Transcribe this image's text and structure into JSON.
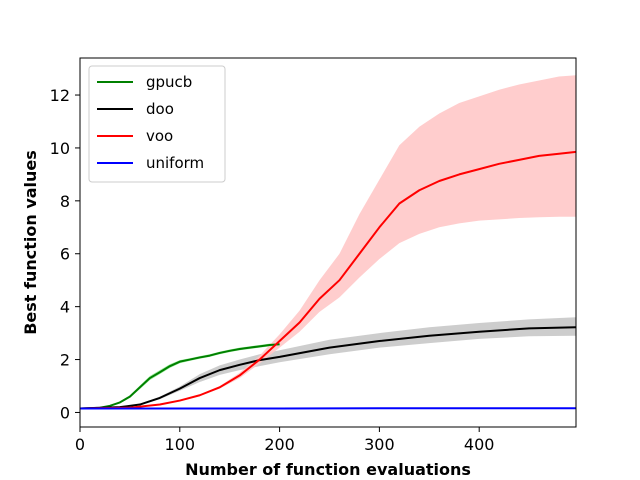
{
  "chart_data": {
    "type": "line",
    "title": "",
    "xlabel": "Number of function evaluations",
    "ylabel": "Best function values",
    "xlim": [
      0,
      497
    ],
    "ylim": [
      -0.55,
      13.4
    ],
    "xticks": [
      0,
      100,
      200,
      300,
      400
    ],
    "yticks": [
      0,
      2,
      4,
      6,
      8,
      10,
      12
    ],
    "grid": false,
    "legend_position": "top-left",
    "series": [
      {
        "name": "gpucb",
        "color": "#008000",
        "band_color": "#90ee90",
        "x": [
          0,
          20,
          30,
          40,
          50,
          60,
          70,
          80,
          90,
          100,
          110,
          120,
          130,
          140,
          150,
          160,
          170,
          180,
          190,
          200
        ],
        "y": [
          0.15,
          0.18,
          0.25,
          0.38,
          0.6,
          0.95,
          1.3,
          1.52,
          1.75,
          1.92,
          2.0,
          2.08,
          2.15,
          2.25,
          2.33,
          2.4,
          2.45,
          2.5,
          2.55,
          2.58
        ],
        "lower": [
          0.14,
          0.17,
          0.23,
          0.35,
          0.55,
          0.88,
          1.22,
          1.45,
          1.68,
          1.86,
          1.95,
          2.03,
          2.1,
          2.2,
          2.28,
          2.35,
          2.4,
          2.45,
          2.5,
          2.53
        ],
        "upper": [
          0.16,
          0.19,
          0.27,
          0.41,
          0.65,
          1.02,
          1.38,
          1.6,
          1.82,
          1.98,
          2.05,
          2.13,
          2.2,
          2.3,
          2.38,
          2.45,
          2.5,
          2.55,
          2.6,
          2.63
        ]
      },
      {
        "name": "doo",
        "color": "#000000",
        "band_color": "#c8c8c8",
        "x": [
          0,
          40,
          60,
          80,
          100,
          120,
          140,
          160,
          180,
          200,
          250,
          300,
          350,
          400,
          450,
          497
        ],
        "y": [
          0.15,
          0.2,
          0.3,
          0.55,
          0.9,
          1.3,
          1.6,
          1.8,
          1.98,
          2.1,
          2.45,
          2.7,
          2.9,
          3.05,
          3.18,
          3.22
        ],
        "lower": [
          0.15,
          0.19,
          0.28,
          0.5,
          0.82,
          1.15,
          1.42,
          1.6,
          1.75,
          1.9,
          2.2,
          2.45,
          2.62,
          2.78,
          2.88,
          2.9
        ],
        "upper": [
          0.15,
          0.21,
          0.32,
          0.6,
          0.98,
          1.45,
          1.78,
          2.0,
          2.2,
          2.35,
          2.75,
          3.0,
          3.22,
          3.38,
          3.52,
          3.6
        ]
      },
      {
        "name": "voo",
        "color": "#ff0000",
        "band_color": "#ffc8c8",
        "x": [
          0,
          50,
          80,
          100,
          120,
          140,
          160,
          180,
          200,
          220,
          240,
          260,
          280,
          300,
          320,
          340,
          360,
          380,
          400,
          420,
          440,
          460,
          480,
          497
        ],
        "y": [
          0.15,
          0.18,
          0.3,
          0.45,
          0.65,
          0.95,
          1.4,
          2.0,
          2.7,
          3.4,
          4.3,
          5.0,
          6.0,
          7.0,
          7.9,
          8.4,
          8.75,
          9.0,
          9.2,
          9.4,
          9.55,
          9.7,
          9.78,
          9.85
        ],
        "lower": [
          0.15,
          0.18,
          0.3,
          0.44,
          0.62,
          0.9,
          1.3,
          1.85,
          2.45,
          3.05,
          3.8,
          4.35,
          5.1,
          5.8,
          6.4,
          6.75,
          7.0,
          7.15,
          7.25,
          7.3,
          7.35,
          7.38,
          7.4,
          7.4
        ],
        "upper": [
          0.15,
          0.18,
          0.31,
          0.46,
          0.68,
          1.0,
          1.5,
          2.15,
          2.95,
          3.85,
          5.0,
          6.0,
          7.5,
          8.8,
          10.1,
          10.8,
          11.3,
          11.7,
          11.95,
          12.2,
          12.4,
          12.55,
          12.7,
          12.75
        ]
      },
      {
        "name": "uniform",
        "color": "#0000ff",
        "band_color": "#add8e6",
        "x": [
          0,
          100,
          200,
          300,
          400,
          497
        ],
        "y": [
          0.15,
          0.15,
          0.15,
          0.16,
          0.16,
          0.16
        ],
        "lower": [
          0.14,
          0.14,
          0.14,
          0.15,
          0.15,
          0.15
        ],
        "upper": [
          0.16,
          0.16,
          0.16,
          0.17,
          0.17,
          0.17
        ]
      }
    ]
  }
}
